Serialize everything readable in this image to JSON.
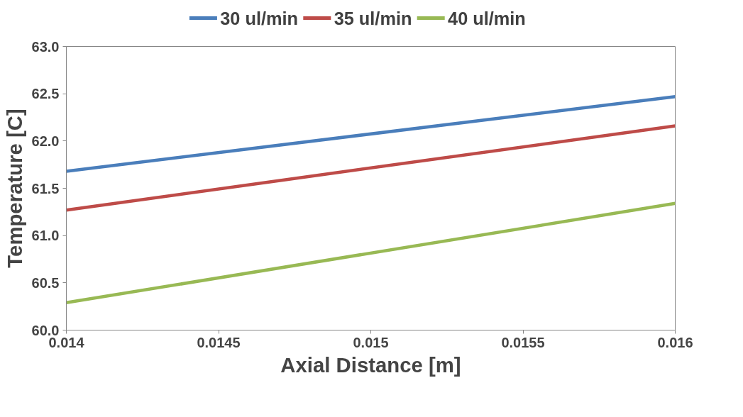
{
  "chart_data": {
    "type": "line",
    "xlabel": "Axial Distance [m]",
    "ylabel": "Temperature [C]",
    "x": [
      0.014,
      0.016
    ],
    "series": [
      {
        "name": "30 ul/min",
        "color": "#4a7ebb",
        "values": [
          61.68,
          62.47
        ]
      },
      {
        "name": "35 ul/min",
        "color": "#be4b48",
        "values": [
          61.27,
          62.16
        ]
      },
      {
        "name": "40 ul/min",
        "color": "#98b954",
        "values": [
          60.29,
          61.34
        ]
      }
    ],
    "xlim": [
      0.014,
      0.016
    ],
    "xticks": [
      0.014,
      0.0145,
      0.015,
      0.0155,
      0.016
    ],
    "ylim": [
      60.0,
      63.0
    ],
    "yticks": [
      {
        "value": 60.0,
        "label": "60.0"
      },
      {
        "value": 60.5,
        "label": "60.5"
      },
      {
        "value": 61.0,
        "label": "61.0"
      },
      {
        "value": 61.5,
        "label": "61.5"
      },
      {
        "value": 62.0,
        "label": "62.0"
      },
      {
        "value": 62.5,
        "label": "62.5"
      },
      {
        "value": 63.0,
        "label": "63.0"
      }
    ],
    "grid": false,
    "legend": "top",
    "marker": "none",
    "line_style": "solid"
  }
}
